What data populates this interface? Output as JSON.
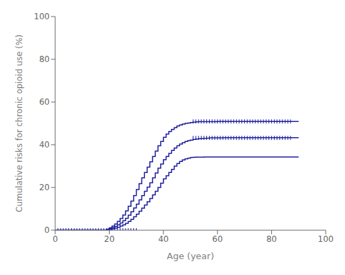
{
  "chart_data": {
    "type": "step",
    "xlabel": "Age (year)",
    "ylabel": "Cumulative risks for chronic opioid use (%)",
    "xlim": [
      0,
      100
    ],
    "ylim": [
      0,
      100
    ],
    "xticks": [
      0,
      20,
      40,
      60,
      80,
      100
    ],
    "yticks": [
      0,
      20,
      40,
      60,
      80,
      100
    ],
    "grid": false,
    "series": [
      {
        "type": "step",
        "color": "#1c1c9c",
        "x": [
          0,
          1,
          2,
          3,
          4,
          5,
          6,
          7,
          8,
          9,
          10,
          11,
          12,
          13,
          14,
          15,
          16,
          17,
          18,
          19,
          20,
          21,
          22,
          23,
          24,
          25,
          26,
          27,
          28,
          29,
          30,
          31,
          32,
          33,
          34,
          35,
          36,
          37,
          38,
          39,
          40,
          41,
          42,
          43,
          44,
          45,
          46,
          47,
          48,
          49,
          50,
          51,
          52,
          53,
          54,
          55,
          56,
          57,
          58,
          59,
          60,
          61,
          62,
          63,
          64,
          65,
          66,
          67,
          68,
          69,
          70,
          75,
          80,
          87,
          90
        ],
        "values": [
          0,
          0,
          0,
          0,
          0,
          0,
          0,
          0,
          0,
          0,
          0,
          0,
          0,
          0,
          0,
          0,
          0,
          0,
          0,
          0.15,
          0.35,
          0.65,
          1.0,
          1.4,
          1.9,
          2.5,
          3.2,
          4.1,
          5.1,
          6.3,
          7.5,
          8.9,
          10.3,
          11.8,
          13.3,
          14.8,
          16.5,
          18.2,
          20.0,
          22.0,
          24.0,
          25.5,
          27.0,
          28.5,
          30.0,
          31.2,
          32.2,
          32.9,
          33.4,
          33.7,
          34.0,
          34.1,
          34.2,
          34.2,
          34.2,
          34.3,
          34.3,
          34.3,
          34.3,
          34.3,
          34.3,
          34.3,
          34.3,
          34.3,
          34.3,
          34.3,
          34.3,
          34.3,
          34.3,
          34.3,
          34.3,
          34.3,
          34.3,
          34.3,
          34.3
        ]
      },
      {
        "type": "step",
        "color": "#1c1c9c",
        "x": [
          0,
          1,
          2,
          3,
          4,
          5,
          6,
          7,
          8,
          9,
          10,
          11,
          12,
          13,
          14,
          15,
          16,
          17,
          18,
          19,
          20,
          21,
          22,
          23,
          24,
          25,
          26,
          27,
          28,
          29,
          30,
          31,
          32,
          33,
          34,
          35,
          36,
          37,
          38,
          39,
          40,
          41,
          42,
          43,
          44,
          45,
          46,
          47,
          48,
          49,
          50,
          51,
          52,
          53,
          54,
          55,
          56,
          57,
          58,
          59,
          60,
          61,
          62,
          63,
          64,
          65,
          66,
          67,
          68,
          69,
          70,
          75,
          80,
          87,
          90
        ],
        "values": [
          0,
          0,
          0,
          0,
          0,
          0,
          0,
          0,
          0,
          0,
          0,
          0,
          0,
          0,
          0,
          0,
          0,
          0,
          0,
          0.5,
          1.1,
          1.9,
          2.9,
          4.1,
          5.5,
          7.1,
          9.0,
          11.2,
          13.6,
          16.2,
          19.0,
          21.8,
          24.5,
          27.0,
          29.5,
          32.0,
          34.5,
          37.0,
          39.5,
          41.5,
          43.5,
          45.0,
          46.2,
          47.2,
          48.0,
          48.8,
          49.3,
          49.7,
          50.0,
          50.2,
          50.4,
          50.6,
          50.7,
          50.8,
          50.8,
          50.8,
          50.8,
          50.8,
          50.8,
          50.8,
          50.9,
          50.9,
          50.9,
          50.9,
          50.9,
          50.9,
          50.9,
          50.9,
          50.9,
          50.9,
          50.9,
          50.9,
          50.9,
          50.9,
          50.9
        ]
      },
      {
        "type": "step",
        "color": "#1c1c9c",
        "x": [
          0,
          1,
          2,
          3,
          4,
          5,
          6,
          7,
          8,
          9,
          10,
          11,
          12,
          13,
          14,
          15,
          16,
          17,
          18,
          19,
          20,
          21,
          22,
          23,
          24,
          25,
          26,
          27,
          28,
          29,
          30,
          31,
          32,
          33,
          34,
          35,
          36,
          37,
          38,
          39,
          40,
          41,
          42,
          43,
          44,
          45,
          46,
          47,
          48,
          49,
          50,
          51,
          52,
          53,
          54,
          55,
          56,
          57,
          58,
          59,
          60,
          61,
          62,
          63,
          64,
          65,
          66,
          67,
          68,
          69,
          70,
          75,
          80,
          87,
          90
        ],
        "values": [
          0,
          0,
          0,
          0,
          0,
          0,
          0,
          0,
          0,
          0,
          0,
          0,
          0,
          0,
          0,
          0,
          0,
          0,
          0,
          0.3,
          0.7,
          1.2,
          1.8,
          2.5,
          3.4,
          4.4,
          5.6,
          7.0,
          8.6,
          10.4,
          12.2,
          14.2,
          16.2,
          18.2,
          20.2,
          22.2,
          24.5,
          26.8,
          29.0,
          31.0,
          33.0,
          34.5,
          36.0,
          37.3,
          38.5,
          39.5,
          40.3,
          41.0,
          41.5,
          41.9,
          42.2,
          42.5,
          42.7,
          42.8,
          42.9,
          43.0,
          43.1,
          43.2,
          43.2,
          43.2,
          43.2,
          43.2,
          43.3,
          43.3,
          43.3,
          43.3,
          43.3,
          43.3,
          43.3,
          43.3,
          43.3,
          43.3,
          43.3,
          43.3,
          43.3
        ]
      },
      {
        "type": "scatter",
        "marker": "|",
        "color": "#1c1c9c",
        "x": [
          1,
          2,
          3,
          4,
          5,
          6,
          7,
          8,
          9,
          10,
          11,
          12,
          13,
          14,
          15,
          16,
          17,
          18,
          19,
          20,
          21,
          22,
          23,
          24,
          25,
          26,
          27,
          28,
          29,
          30
        ],
        "values": [
          0.0,
          0.0,
          0.0,
          0.0,
          0.0,
          0.0,
          0.0,
          0.0,
          0.0,
          0.0,
          0.0,
          0.0,
          0.0,
          0.0,
          0.0,
          0.0,
          0.0,
          0.0,
          0.0,
          0.0,
          0.0,
          0.0,
          0.0,
          0.0,
          0.0,
          0.0,
          0.0,
          0.0,
          0.0,
          0.0
        ]
      },
      {
        "type": "scatter",
        "marker": "|",
        "color": "#1c1c9c",
        "x": [
          51,
          52,
          53,
          54,
          55,
          56,
          57,
          58,
          59,
          60,
          61,
          62,
          63,
          64,
          65,
          66,
          67,
          68,
          69,
          70,
          71,
          72,
          73,
          74,
          75,
          76,
          77,
          78,
          79,
          80,
          81,
          82,
          83,
          84,
          85,
          86,
          87
        ],
        "values": [
          43.2,
          43.2,
          43.2,
          43.2,
          43.2,
          43.2,
          43.2,
          43.2,
          43.2,
          43.2,
          43.2,
          43.2,
          43.2,
          43.2,
          43.2,
          43.2,
          43.2,
          43.2,
          43.2,
          43.2,
          43.2,
          43.2,
          43.2,
          43.2,
          43.2,
          43.2,
          43.2,
          43.2,
          43.2,
          43.2,
          43.2,
          43.2,
          43.2,
          43.2,
          43.2,
          43.2,
          43.2
        ]
      },
      {
        "type": "scatter",
        "marker": "|",
        "color": "#1c1c9c",
        "x": [
          51,
          52,
          53,
          54,
          55,
          56,
          57,
          58,
          59,
          60,
          61,
          62,
          63,
          64,
          65,
          66,
          67,
          68,
          69,
          70,
          71,
          72,
          73,
          74,
          75,
          76,
          77,
          78,
          79,
          80,
          81,
          82,
          83,
          84,
          85,
          86,
          87
        ],
        "values": [
          50.9,
          50.9,
          50.9,
          50.9,
          50.9,
          50.9,
          50.9,
          50.9,
          50.9,
          50.9,
          50.9,
          50.9,
          50.9,
          50.9,
          50.9,
          50.9,
          50.9,
          50.9,
          50.9,
          50.9,
          50.9,
          50.9,
          50.9,
          50.9,
          50.9,
          50.9,
          50.9,
          50.9,
          50.9,
          50.9,
          50.9,
          50.9,
          50.9,
          50.9,
          50.9,
          50.9,
          50.9
        ]
      }
    ]
  }
}
